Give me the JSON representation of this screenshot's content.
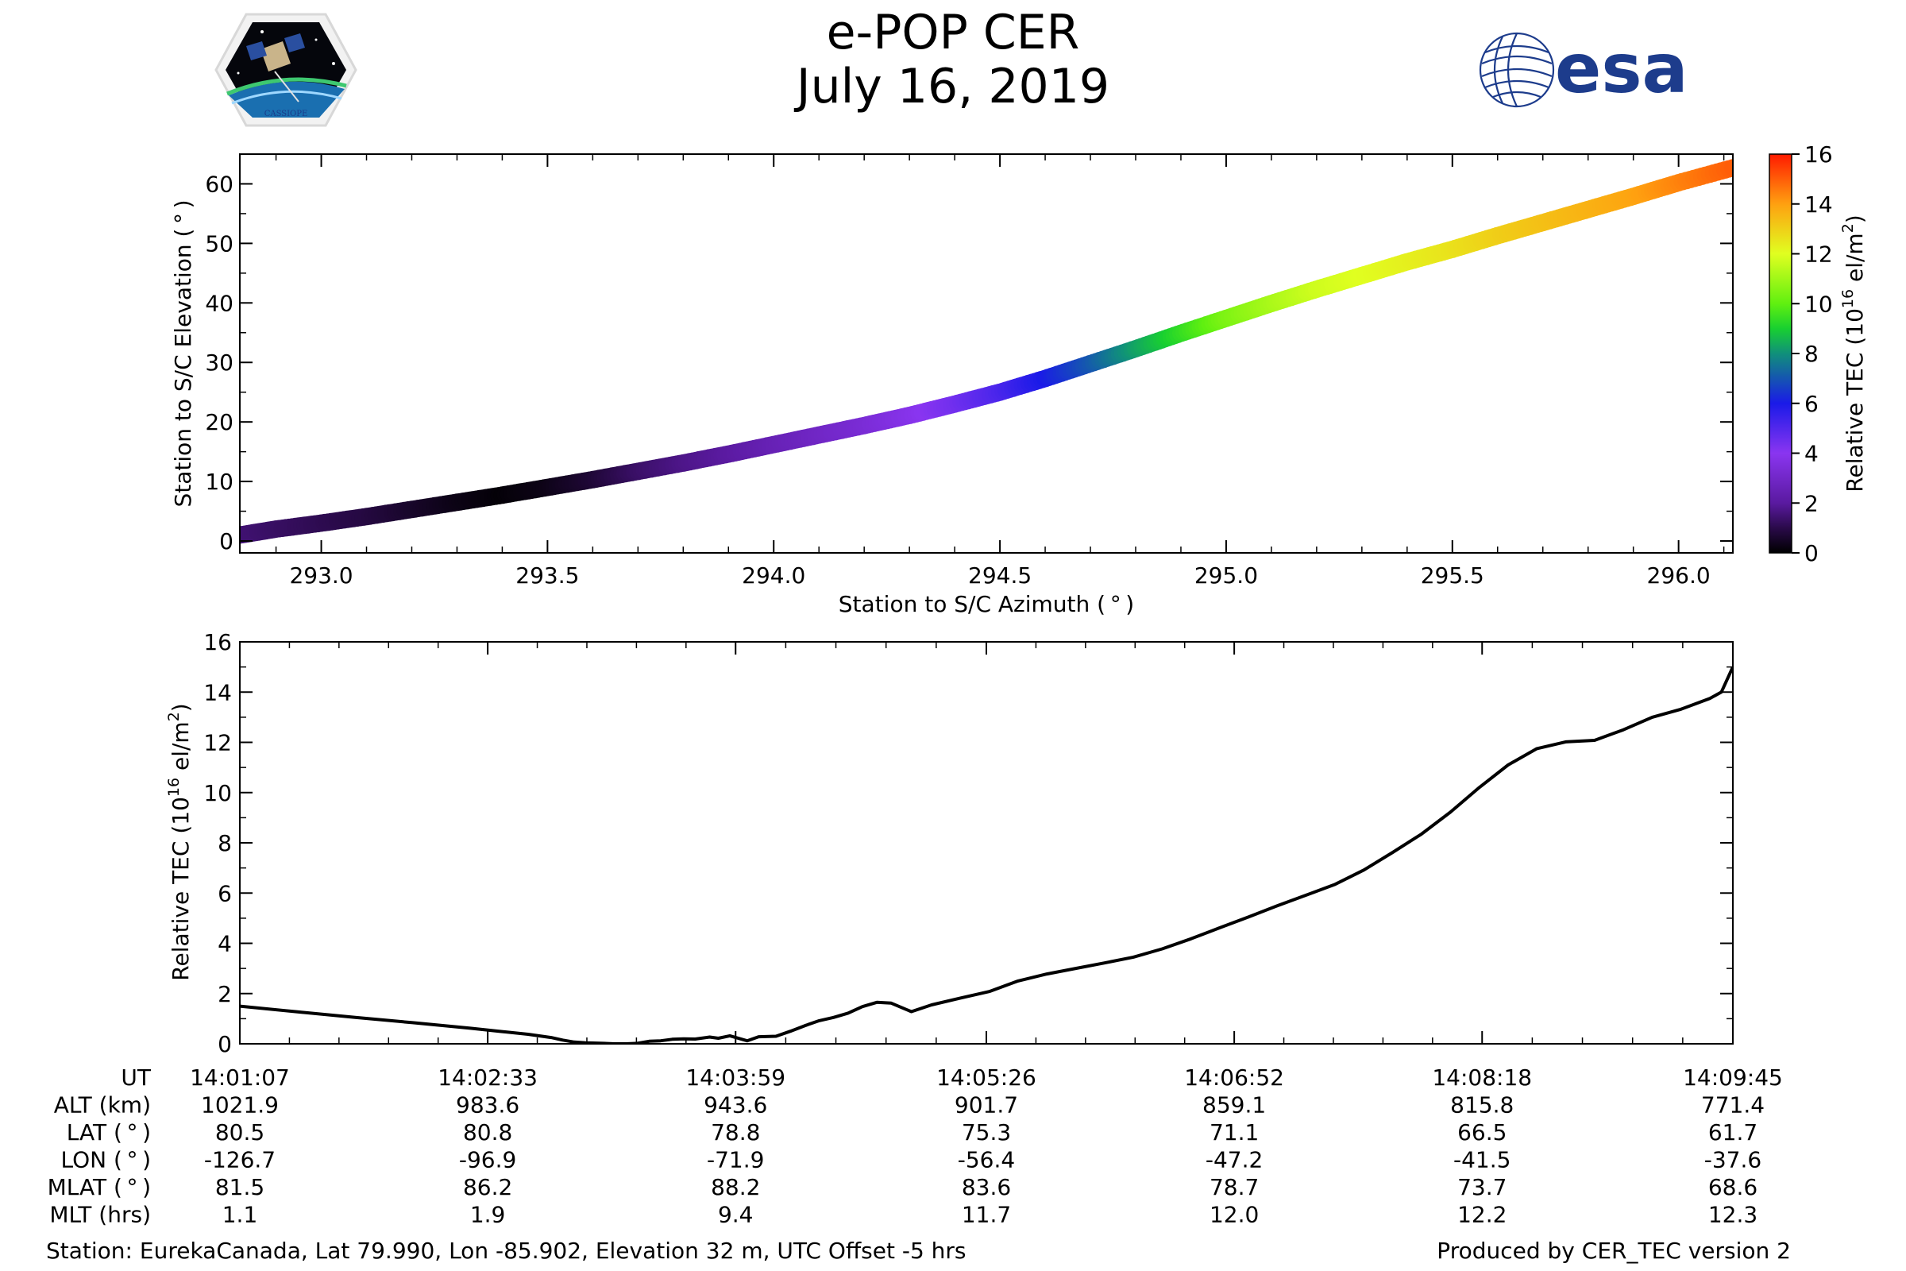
{
  "header": {
    "title": "e-POP CER",
    "date": "July 16, 2019",
    "left_logo": {
      "label": "CASSIOPE",
      "icon": "cassiope-mission-logo"
    },
    "right_logo": {
      "label": "esa",
      "icon": "esa-logo"
    }
  },
  "colors": {
    "axis": "#000000",
    "line": "#000000",
    "esa_blue": "#1d3c8c"
  },
  "footer": {
    "station": "Station: EurekaCanada, Lat 79.990, Lon -85.902, Elevation 32 m, UTC Offset -5 hrs",
    "produced_by": "Produced by CER_TEC version 2"
  },
  "chart_data": [
    {
      "type": "scatter",
      "name": "elevation-vs-azimuth",
      "xlabel": "Station to S/C Azimuth ( ° )",
      "ylabel": "Station to S/C Elevation ( ° )",
      "xlim": [
        292.82,
        296.12
      ],
      "ylim": [
        -2,
        65
      ],
      "xticks": [
        293.0,
        293.5,
        294.0,
        294.5,
        295.0,
        295.5,
        296.0
      ],
      "xtick_labels": [
        "293.0",
        "293.5",
        "294.0",
        "294.5",
        "295.0",
        "295.5",
        "296.0"
      ],
      "yticks": [
        0,
        10,
        20,
        30,
        40,
        50,
        60
      ],
      "ytick_labels": [
        "0",
        "10",
        "20",
        "30",
        "40",
        "50",
        "60"
      ],
      "color_variable": "Relative TEC",
      "points": [
        {
          "az": 292.82,
          "el": 1.0,
          "tec": 1.5
        },
        {
          "az": 292.9,
          "el": 2.0,
          "tec": 1.3
        },
        {
          "az": 293.0,
          "el": 3.0,
          "tec": 1.1
        },
        {
          "az": 293.1,
          "el": 4.1,
          "tec": 0.9
        },
        {
          "az": 293.2,
          "el": 5.3,
          "tec": 0.6
        },
        {
          "az": 293.3,
          "el": 6.5,
          "tec": 0.3
        },
        {
          "az": 293.4,
          "el": 7.7,
          "tec": 0.1
        },
        {
          "az": 293.5,
          "el": 9.0,
          "tec": 0.3
        },
        {
          "az": 293.6,
          "el": 10.3,
          "tec": 0.7
        },
        {
          "az": 293.7,
          "el": 11.7,
          "tec": 1.3
        },
        {
          "az": 293.8,
          "el": 13.1,
          "tec": 1.7
        },
        {
          "az": 293.9,
          "el": 14.6,
          "tec": 2.0
        },
        {
          "az": 294.0,
          "el": 16.2,
          "tec": 2.5
        },
        {
          "az": 294.1,
          "el": 17.8,
          "tec": 2.9
        },
        {
          "az": 294.2,
          "el": 19.4,
          "tec": 3.3
        },
        {
          "az": 294.3,
          "el": 21.1,
          "tec": 3.8
        },
        {
          "az": 294.4,
          "el": 23.0,
          "tec": 4.4
        },
        {
          "az": 294.5,
          "el": 25.0,
          "tec": 5.1
        },
        {
          "az": 294.6,
          "el": 27.3,
          "tec": 6.0
        },
        {
          "az": 294.7,
          "el": 29.8,
          "tec": 7.0
        },
        {
          "az": 294.8,
          "el": 32.3,
          "tec": 8.2
        },
        {
          "az": 294.9,
          "el": 34.9,
          "tec": 9.3
        },
        {
          "az": 295.0,
          "el": 37.4,
          "tec": 10.4
        },
        {
          "az": 295.1,
          "el": 39.9,
          "tec": 11.1
        },
        {
          "az": 295.2,
          "el": 42.3,
          "tec": 11.7
        },
        {
          "az": 295.3,
          "el": 44.6,
          "tec": 12.0
        },
        {
          "az": 295.4,
          "el": 46.9,
          "tec": 12.3
        },
        {
          "az": 295.5,
          "el": 49.0,
          "tec": 12.6
        },
        {
          "az": 295.6,
          "el": 51.3,
          "tec": 13.0
        },
        {
          "az": 295.7,
          "el": 53.5,
          "tec": 13.3
        },
        {
          "az": 295.8,
          "el": 55.7,
          "tec": 13.6
        },
        {
          "az": 295.9,
          "el": 57.9,
          "tec": 13.9
        },
        {
          "az": 296.0,
          "el": 60.2,
          "tec": 14.4
        },
        {
          "az": 296.12,
          "el": 62.7,
          "tec": 15.0
        }
      ],
      "colorbar": {
        "label_prefix": "Relative TEC (10",
        "label_exponent": "16",
        "label_unit": " el/m",
        "label_unit_exponent": "2",
        "label_suffix": ")",
        "range": [
          0,
          16
        ],
        "ticks": [
          0,
          2,
          4,
          6,
          8,
          10,
          12,
          14,
          16
        ],
        "tick_labels": [
          "0",
          "2",
          "4",
          "6",
          "8",
          "10",
          "12",
          "14",
          "16"
        ]
      }
    },
    {
      "type": "line",
      "name": "tec-vs-time",
      "ylabel_prefix": "Relative TEC (10",
      "ylabel_exponent": "16",
      "ylabel_unit": " el/m",
      "ylabel_unit_exponent": "2",
      "ylabel_suffix": ")",
      "xlim": [
        0,
        518
      ],
      "ylim": [
        0,
        16
      ],
      "yticks": [
        0,
        2,
        4,
        6,
        8,
        10,
        12,
        14,
        16
      ],
      "ytick_labels": [
        "0",
        "2",
        "4",
        "6",
        "8",
        "10",
        "12",
        "14",
        "16"
      ],
      "x_unit": "seconds since 14:01:07",
      "series": [
        {
          "name": "Relative TEC",
          "x": [
            0,
            20,
            40,
            60,
            80,
            90,
            100,
            108,
            112,
            116,
            120,
            126,
            130,
            134,
            138,
            140,
            142,
            146,
            150,
            154,
            158,
            163,
            166,
            170,
            176,
            180,
            186,
            191,
            196,
            201,
            206,
            211,
            216,
            221,
            226,
            233,
            240,
            250,
            260,
            270,
            280,
            290,
            300,
            310,
            320,
            330,
            340,
            350,
            360,
            370,
            380,
            390,
            400,
            410,
            420,
            430,
            440,
            450,
            460,
            470,
            480,
            490,
            500,
            510,
            514,
            518
          ],
          "values": [
            1.5,
            1.27,
            1.05,
            0.84,
            0.62,
            0.5,
            0.38,
            0.25,
            0.15,
            0.07,
            0.04,
            0.02,
            0.0,
            0.0,
            0.02,
            0.06,
            0.1,
            0.12,
            0.18,
            0.2,
            0.19,
            0.27,
            0.22,
            0.32,
            0.12,
            0.28,
            0.3,
            0.5,
            0.72,
            0.92,
            1.05,
            1.22,
            1.48,
            1.65,
            1.62,
            1.28,
            1.55,
            1.82,
            2.08,
            2.5,
            2.78,
            3.0,
            3.22,
            3.45,
            3.78,
            4.18,
            4.62,
            5.05,
            5.5,
            5.92,
            6.35,
            6.92,
            7.62,
            8.35,
            9.22,
            10.2,
            11.1,
            11.75,
            12.02,
            12.08,
            12.5,
            13.0,
            13.32,
            13.75,
            14.0,
            15.0
          ]
        }
      ],
      "time_table": {
        "row_labels": [
          "UT",
          "ALT (km)",
          "LAT ( ° )",
          "LON ( ° )",
          "MLAT ( ° )",
          "MLT (hrs)"
        ],
        "columns": [
          {
            "t": 0,
            "values": [
              "14:01:07",
              "1021.9",
              "80.5",
              "-126.7",
              "81.5",
              "1.1"
            ]
          },
          {
            "t": 86,
            "values": [
              "14:02:33",
              "983.6",
              "80.8",
              "-96.9",
              "86.2",
              "1.9"
            ]
          },
          {
            "t": 172,
            "values": [
              "14:03:59",
              "943.6",
              "78.8",
              "-71.9",
              "88.2",
              "9.4"
            ]
          },
          {
            "t": 259,
            "values": [
              "14:05:26",
              "901.7",
              "75.3",
              "-56.4",
              "83.6",
              "11.7"
            ]
          },
          {
            "t": 345,
            "values": [
              "14:06:52",
              "859.1",
              "71.1",
              "-47.2",
              "78.7",
              "12.0"
            ]
          },
          {
            "t": 431,
            "values": [
              "14:08:18",
              "815.8",
              "66.5",
              "-41.5",
              "73.7",
              "12.2"
            ]
          },
          {
            "t": 518,
            "values": [
              "14:09:45",
              "771.4",
              "61.7",
              "-37.6",
              "68.6",
              "12.3"
            ]
          }
        ]
      }
    }
  ]
}
